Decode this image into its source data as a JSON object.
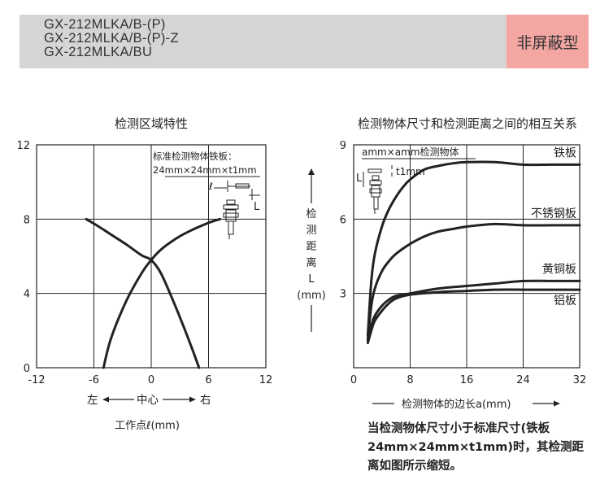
{
  "header": {
    "models": [
      "GX-212MLKA/B-(P)",
      "GX-212MLKA/B-(P)-Z",
      "GX-212MLKA/BU"
    ],
    "tag": "非屏蔽型",
    "tag_color": "#f4a6a3",
    "bar_color": "#d5d5d5"
  },
  "chart_data": [
    {
      "type": "line",
      "title": "检测区域特性",
      "xlabel": "工作点ℓ(mm)",
      "direction": {
        "left": "左",
        "center": "中心",
        "right": "右"
      },
      "xlim": [
        -12,
        12
      ],
      "ylim": [
        0,
        12
      ],
      "xticks": [
        "-12",
        "-6",
        "0",
        "6",
        "12"
      ],
      "yticks": [
        "0",
        "4",
        "8",
        "12"
      ],
      "grid": true,
      "annotation": {
        "title": "标准检测物体铁板：",
        "size": "24mm×24mm×t1mm",
        "l_symbol": "ℓ",
        "L_symbol": "L"
      },
      "series": [
        {
          "x": [
            -5,
            -4.2,
            -2.6,
            -1,
            0,
            1,
            2.6,
            4,
            6,
            7.2
          ],
          "y": [
            0,
            1.6,
            3.6,
            5.1,
            5.8,
            6.35,
            6.95,
            7.35,
            7.8,
            8.0
          ]
        },
        {
          "x": [
            -6.8,
            -5.5,
            -4,
            -2.5,
            -1,
            0,
            1,
            2.3,
            3.4,
            4.3,
            5
          ],
          "y": [
            8.0,
            7.6,
            7.1,
            6.6,
            6.05,
            5.8,
            5.1,
            3.6,
            2.2,
            1.0,
            0
          ]
        }
      ]
    },
    {
      "type": "line",
      "title": "检测物体尺寸和检测距离之间的相互关系",
      "ylabel": [
        "检",
        "测",
        "距",
        "离",
        "L",
        "(mm)"
      ],
      "xlabel": "检测物体的边长a(mm)",
      "xlim": [
        0,
        32
      ],
      "ylim": [
        0,
        9
      ],
      "xticks": [
        "0",
        "8",
        "16",
        "24",
        "32"
      ],
      "yticks": [
        "3",
        "6",
        "9"
      ],
      "grid": true,
      "annotation": {
        "object": "amm×amm检测物体",
        "thickness": "t1mm",
        "L_symbol": "L"
      },
      "series": [
        {
          "name": "铁板",
          "x": [
            2,
            2.5,
            3,
            4,
            5,
            6,
            7,
            8,
            10,
            12,
            14,
            16,
            20,
            24,
            28,
            32
          ],
          "y": [
            1.3,
            3.5,
            4.6,
            5.7,
            6.4,
            6.9,
            7.3,
            7.6,
            8.0,
            8.15,
            8.25,
            8.3,
            8.3,
            8.2,
            8.2,
            8.2
          ]
        },
        {
          "name": "不锈钢板",
          "x": [
            2,
            2.5,
            3,
            4,
            5,
            6,
            8,
            10,
            12,
            14,
            16,
            20,
            24,
            28,
            32
          ],
          "y": [
            1.1,
            2.5,
            3.2,
            3.9,
            4.3,
            4.6,
            5.0,
            5.3,
            5.5,
            5.6,
            5.7,
            5.8,
            5.75,
            5.75,
            5.75
          ]
        },
        {
          "name": "黄铜板",
          "x": [
            2,
            2.5,
            3,
            4,
            5,
            6,
            8,
            12,
            16,
            20,
            24,
            28,
            32
          ],
          "y": [
            1.2,
            1.7,
            2.1,
            2.5,
            2.75,
            2.9,
            3.0,
            3.2,
            3.3,
            3.4,
            3.5,
            3.5,
            3.5
          ]
        },
        {
          "name": "铝板",
          "x": [
            2,
            2.5,
            3,
            4,
            5,
            6,
            8,
            12,
            16,
            20,
            24,
            28,
            32
          ],
          "y": [
            1.0,
            1.5,
            1.9,
            2.3,
            2.6,
            2.8,
            2.95,
            3.05,
            3.1,
            3.15,
            3.15,
            3.15,
            3.15
          ]
        }
      ]
    }
  ],
  "note": "当检测物体尺寸小于标准尺寸(铁板24mm×24mm×t1mm)时，其检测距离如图所示缩短。"
}
